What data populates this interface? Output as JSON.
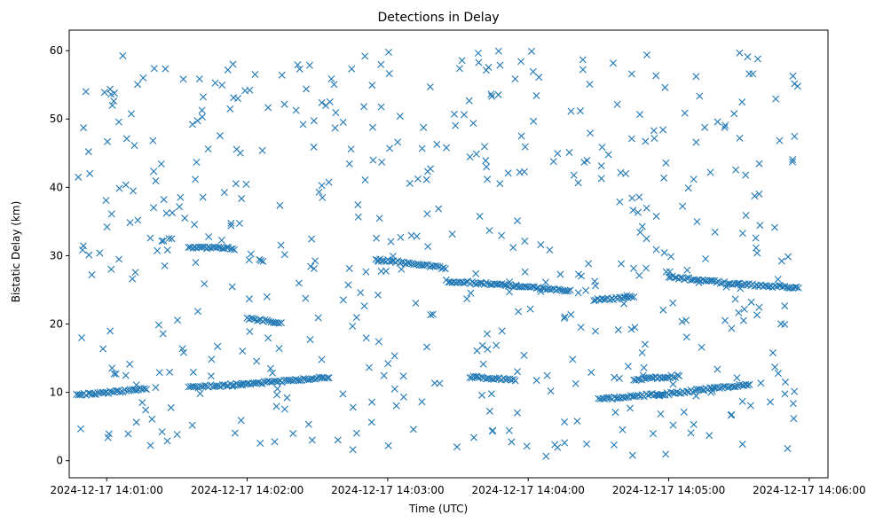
{
  "chart_data": {
    "type": "scatter",
    "title": "Detections in Delay",
    "xlabel": "Time (UTC)",
    "ylabel": "Bistatic Delay (km)",
    "marker": "x",
    "color": "#1f77b4",
    "grid": false,
    "legend": "none",
    "xlim": [
      "2024-12-17 14:00:44",
      "2024-12-17 14:06:08"
    ],
    "ylim": [
      -2.5,
      63
    ],
    "xticks": [
      "2024-12-17 14:01:00",
      "2024-12-17 14:02:00",
      "2024-12-17 14:03:00",
      "2024-12-17 14:04:00",
      "2024-12-17 14:05:00",
      "2024-12-17 14:06:00"
    ],
    "yticks": [
      "0",
      "10",
      "20",
      "30",
      "40",
      "50",
      "60"
    ],
    "x_time_range": [
      "2024-12-17 14:00:47",
      "2024-12-17 14:05:56"
    ],
    "tracks": [
      {
        "start": "2024-12-17 14:00:47",
        "end": "2024-12-17 14:01:05",
        "delay_start": 9.6,
        "delay_end": 10.1
      },
      {
        "start": "2024-12-17 14:01:05",
        "end": "2024-12-17 14:01:17",
        "delay_start": 10.1,
        "delay_end": 10.6
      },
      {
        "start": "2024-12-17 14:01:35",
        "end": "2024-12-17 14:01:58",
        "delay_start": 10.7,
        "delay_end": 11.2
      },
      {
        "start": "2024-12-17 14:01:58",
        "end": "2024-12-17 14:02:18",
        "delay_start": 11.2,
        "delay_end": 11.7
      },
      {
        "start": "2024-12-17 14:02:18",
        "end": "2024-12-17 14:02:35",
        "delay_start": 11.7,
        "delay_end": 12.2
      },
      {
        "start": "2024-12-17 14:01:35",
        "end": "2024-12-17 14:01:55",
        "delay_start": 31.3,
        "delay_end": 31.0
      },
      {
        "start": "2024-12-17 14:02:00",
        "end": "2024-12-17 14:02:15",
        "delay_start": 20.8,
        "delay_end": 20.2
      },
      {
        "start": "2024-12-17 14:02:55",
        "end": "2024-12-17 14:03:25",
        "delay_start": 29.5,
        "delay_end": 28.2
      },
      {
        "start": "2024-12-17 14:03:25",
        "end": "2024-12-17 14:03:55",
        "delay_start": 26.3,
        "delay_end": 25.6
      },
      {
        "start": "2024-12-17 14:03:55",
        "end": "2024-12-17 14:04:18",
        "delay_start": 25.6,
        "delay_end": 24.8
      },
      {
        "start": "2024-12-17 14:03:35",
        "end": "2024-12-17 14:03:55",
        "delay_start": 12.3,
        "delay_end": 11.8
      },
      {
        "start": "2024-12-17 14:04:28",
        "end": "2024-12-17 14:04:45",
        "delay_start": 23.5,
        "delay_end": 24.0
      },
      {
        "start": "2024-12-17 14:04:30",
        "end": "2024-12-17 14:04:58",
        "delay_start": 9.0,
        "delay_end": 9.8
      },
      {
        "start": "2024-12-17 14:04:45",
        "end": "2024-12-17 14:05:05",
        "delay_start": 11.9,
        "delay_end": 12.4
      },
      {
        "start": "2024-12-17 14:04:55",
        "end": "2024-12-17 14:05:15",
        "delay_start": 9.6,
        "delay_end": 10.4
      },
      {
        "start": "2024-12-17 14:05:15",
        "end": "2024-12-17 14:05:35",
        "delay_start": 10.5,
        "delay_end": 11.1
      },
      {
        "start": "2024-12-17 14:05:00",
        "end": "2024-12-17 14:05:30",
        "delay_start": 26.9,
        "delay_end": 25.8
      },
      {
        "start": "2024-12-17 14:05:30",
        "end": "2024-12-17 14:05:56",
        "delay_start": 25.8,
        "delay_end": 25.3
      }
    ],
    "noise_points": 540,
    "noise_delay_range": [
      0.5,
      60
    ]
  }
}
